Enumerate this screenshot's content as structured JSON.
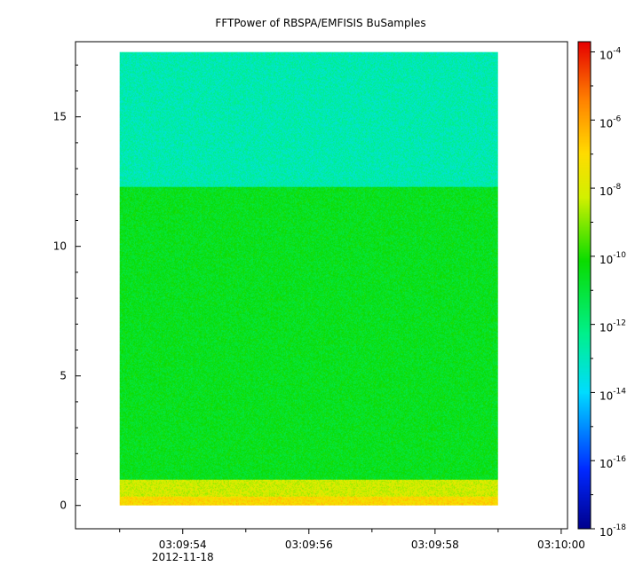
{
  "chart_data": {
    "type": "heatmap",
    "title": "FFTPower of RBSPA/EMFISIS  BuSamples",
    "x_range": [
      "03:09:52.3",
      "03:10:00.1"
    ],
    "x_ticks": [
      {
        "label": "03:09:54",
        "sublabel": "2012-11-18",
        "value": "03:09:54"
      },
      {
        "label": "03:09:56",
        "sublabel": "",
        "value": "03:09:56"
      },
      {
        "label": "03:09:58",
        "sublabel": "",
        "value": "03:09:58"
      },
      {
        "label": "03:10:00",
        "sublabel": "",
        "value": "03:10:00"
      }
    ],
    "x_data_extent": [
      "03:09:53.0",
      "03:09:59.0"
    ],
    "y_range": [
      -0.9,
      17.9
    ],
    "y_ticks": [
      0,
      5,
      10,
      15
    ],
    "y_data_extent": [
      0,
      17.5
    ],
    "colorbar": {
      "scale": "log",
      "range_exponent": [
        -18,
        -3.7
      ],
      "ticks": [
        {
          "base": "10",
          "exp": "-4",
          "value_exponent": -4
        },
        {
          "base": "10",
          "exp": "-6",
          "value_exponent": -6
        },
        {
          "base": "10",
          "exp": "-8",
          "value_exponent": -8
        },
        {
          "base": "10",
          "exp": "-10",
          "value_exponent": -10
        },
        {
          "base": "10",
          "exp": "-12",
          "value_exponent": -12
        },
        {
          "base": "10",
          "exp": "-14",
          "value_exponent": -14
        },
        {
          "base": "10",
          "exp": "-16",
          "value_exponent": -16
        },
        {
          "base": "10",
          "exp": "-18",
          "value_exponent": -18
        }
      ]
    },
    "bands": [
      {
        "y_from": 0,
        "y_to": 0.35,
        "log_power": -7.0
      },
      {
        "y_from": 0.35,
        "y_to": 1.0,
        "log_power": -8.2
      },
      {
        "y_from": 1.0,
        "y_to": 12.3,
        "log_power": -10.6
      },
      {
        "y_from": 12.3,
        "y_to": 17.5,
        "log_power": -12.8
      }
    ],
    "grid": false
  }
}
